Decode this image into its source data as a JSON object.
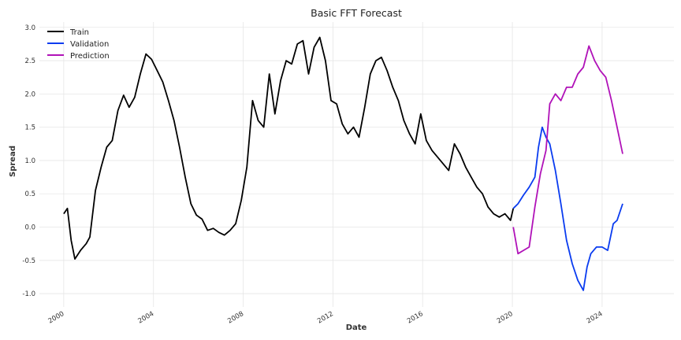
{
  "chart_data": {
    "type": "line",
    "title": "Basic FFT Forecast",
    "xlabel": "Date",
    "ylabel": "Spread",
    "xlim": [
      "1998-12-01",
      "2027-03-15"
    ],
    "ylim": [
      -1.2,
      3.08
    ],
    "x_ticks": [
      "2000",
      "2004",
      "2008",
      "2012",
      "2016",
      "2020",
      "2024"
    ],
    "y_ticks": [
      "-1.0",
      "-0.5",
      "0.0",
      "0.5",
      "1.0",
      "1.5",
      "2.0",
      "2.5",
      "3.0"
    ],
    "grid": true,
    "legend_position": "top-left",
    "series": [
      {
        "name": "Train",
        "color": "#000000",
        "points": [
          [
            "2000-01-01",
            0.2
          ],
          [
            "2000-03-01",
            0.28
          ],
          [
            "2000-05-01",
            -0.2
          ],
          [
            "2000-07-01",
            -0.48
          ],
          [
            "2000-10-01",
            -0.35
          ],
          [
            "2001-01-01",
            -0.25
          ],
          [
            "2001-03-01",
            -0.15
          ],
          [
            "2001-06-01",
            0.55
          ],
          [
            "2001-09-01",
            0.9
          ],
          [
            "2001-12-01",
            1.2
          ],
          [
            "2002-03-01",
            1.3
          ],
          [
            "2002-06-01",
            1.75
          ],
          [
            "2002-09-01",
            1.98
          ],
          [
            "2002-12-01",
            1.8
          ],
          [
            "2003-03-01",
            1.95
          ],
          [
            "2003-06-01",
            2.3
          ],
          [
            "2003-09-01",
            2.6
          ],
          [
            "2003-12-01",
            2.52
          ],
          [
            "2004-03-01",
            2.35
          ],
          [
            "2004-06-01",
            2.18
          ],
          [
            "2004-09-01",
            1.9
          ],
          [
            "2004-12-01",
            1.6
          ],
          [
            "2005-03-01",
            1.2
          ],
          [
            "2005-06-01",
            0.75
          ],
          [
            "2005-09-01",
            0.35
          ],
          [
            "2005-12-01",
            0.18
          ],
          [
            "2006-03-01",
            0.12
          ],
          [
            "2006-06-01",
            -0.05
          ],
          [
            "2006-09-01",
            -0.02
          ],
          [
            "2006-12-01",
            -0.08
          ],
          [
            "2007-03-01",
            -0.12
          ],
          [
            "2007-06-01",
            -0.05
          ],
          [
            "2007-09-01",
            0.05
          ],
          [
            "2007-12-01",
            0.4
          ],
          [
            "2008-03-01",
            0.9
          ],
          [
            "2008-06-01",
            1.9
          ],
          [
            "2008-09-01",
            1.6
          ],
          [
            "2008-12-01",
            1.5
          ],
          [
            "2009-03-01",
            2.3
          ],
          [
            "2009-06-01",
            1.7
          ],
          [
            "2009-09-01",
            2.2
          ],
          [
            "2009-12-01",
            2.5
          ],
          [
            "2010-03-01",
            2.45
          ],
          [
            "2010-06-01",
            2.75
          ],
          [
            "2010-09-01",
            2.8
          ],
          [
            "2010-12-01",
            2.3
          ],
          [
            "2011-03-01",
            2.7
          ],
          [
            "2011-06-01",
            2.85
          ],
          [
            "2011-09-01",
            2.5
          ],
          [
            "2011-12-01",
            1.9
          ],
          [
            "2012-03-01",
            1.85
          ],
          [
            "2012-06-01",
            1.55
          ],
          [
            "2012-09-01",
            1.4
          ],
          [
            "2012-12-01",
            1.5
          ],
          [
            "2013-03-01",
            1.35
          ],
          [
            "2013-06-01",
            1.8
          ],
          [
            "2013-09-01",
            2.3
          ],
          [
            "2013-12-01",
            2.5
          ],
          [
            "2014-03-01",
            2.55
          ],
          [
            "2014-06-01",
            2.35
          ],
          [
            "2014-09-01",
            2.1
          ],
          [
            "2014-12-01",
            1.9
          ],
          [
            "2015-03-01",
            1.6
          ],
          [
            "2015-06-01",
            1.4
          ],
          [
            "2015-09-01",
            1.25
          ],
          [
            "2015-12-01",
            1.7
          ],
          [
            "2016-03-01",
            1.3
          ],
          [
            "2016-06-01",
            1.15
          ],
          [
            "2016-09-01",
            1.05
          ],
          [
            "2016-12-01",
            0.95
          ],
          [
            "2017-03-01",
            0.85
          ],
          [
            "2017-06-01",
            1.25
          ],
          [
            "2017-09-01",
            1.1
          ],
          [
            "2017-12-01",
            0.9
          ],
          [
            "2018-03-01",
            0.75
          ],
          [
            "2018-06-01",
            0.6
          ],
          [
            "2018-09-01",
            0.5
          ],
          [
            "2018-12-01",
            0.3
          ],
          [
            "2019-03-01",
            0.2
          ],
          [
            "2019-06-01",
            0.15
          ],
          [
            "2019-09-01",
            0.2
          ],
          [
            "2019-12-01",
            0.1
          ],
          [
            "2020-01-15",
            0.28
          ]
        ]
      },
      {
        "name": "Validation",
        "color": "#0a3cf0",
        "points": [
          [
            "2020-01-15",
            0.28
          ],
          [
            "2020-04-01",
            0.35
          ],
          [
            "2020-07-01",
            0.48
          ],
          [
            "2020-10-01",
            0.6
          ],
          [
            "2021-01-01",
            0.75
          ],
          [
            "2021-03-01",
            1.2
          ],
          [
            "2021-05-01",
            1.5
          ],
          [
            "2021-07-01",
            1.35
          ],
          [
            "2021-09-01",
            1.25
          ],
          [
            "2021-12-01",
            0.85
          ],
          [
            "2022-03-01",
            0.35
          ],
          [
            "2022-06-01",
            -0.2
          ],
          [
            "2022-09-01",
            -0.55
          ],
          [
            "2022-12-01",
            -0.8
          ],
          [
            "2023-03-01",
            -0.95
          ],
          [
            "2023-05-01",
            -0.6
          ],
          [
            "2023-07-01",
            -0.4
          ],
          [
            "2023-10-01",
            -0.3
          ],
          [
            "2024-01-01",
            -0.3
          ],
          [
            "2024-04-01",
            -0.35
          ],
          [
            "2024-07-01",
            0.05
          ],
          [
            "2024-09-01",
            0.1
          ],
          [
            "2024-12-01",
            0.35
          ]
        ]
      },
      {
        "name": "Prediction",
        "color": "#b012b8",
        "points": [
          [
            "2020-01-15",
            0.0
          ],
          [
            "2020-04-01",
            -0.4
          ],
          [
            "2020-07-01",
            -0.35
          ],
          [
            "2020-10-01",
            -0.3
          ],
          [
            "2021-01-01",
            0.3
          ],
          [
            "2021-04-01",
            0.8
          ],
          [
            "2021-07-01",
            1.15
          ],
          [
            "2021-09-01",
            1.85
          ],
          [
            "2021-12-01",
            2.0
          ],
          [
            "2022-03-01",
            1.9
          ],
          [
            "2022-06-01",
            2.1
          ],
          [
            "2022-09-01",
            2.1
          ],
          [
            "2022-12-01",
            2.3
          ],
          [
            "2023-03-01",
            2.4
          ],
          [
            "2023-06-01",
            2.72
          ],
          [
            "2023-09-01",
            2.5
          ],
          [
            "2023-12-01",
            2.35
          ],
          [
            "2024-03-01",
            2.25
          ],
          [
            "2024-06-01",
            1.9
          ],
          [
            "2024-09-01",
            1.5
          ],
          [
            "2024-12-01",
            1.1
          ]
        ]
      }
    ]
  }
}
